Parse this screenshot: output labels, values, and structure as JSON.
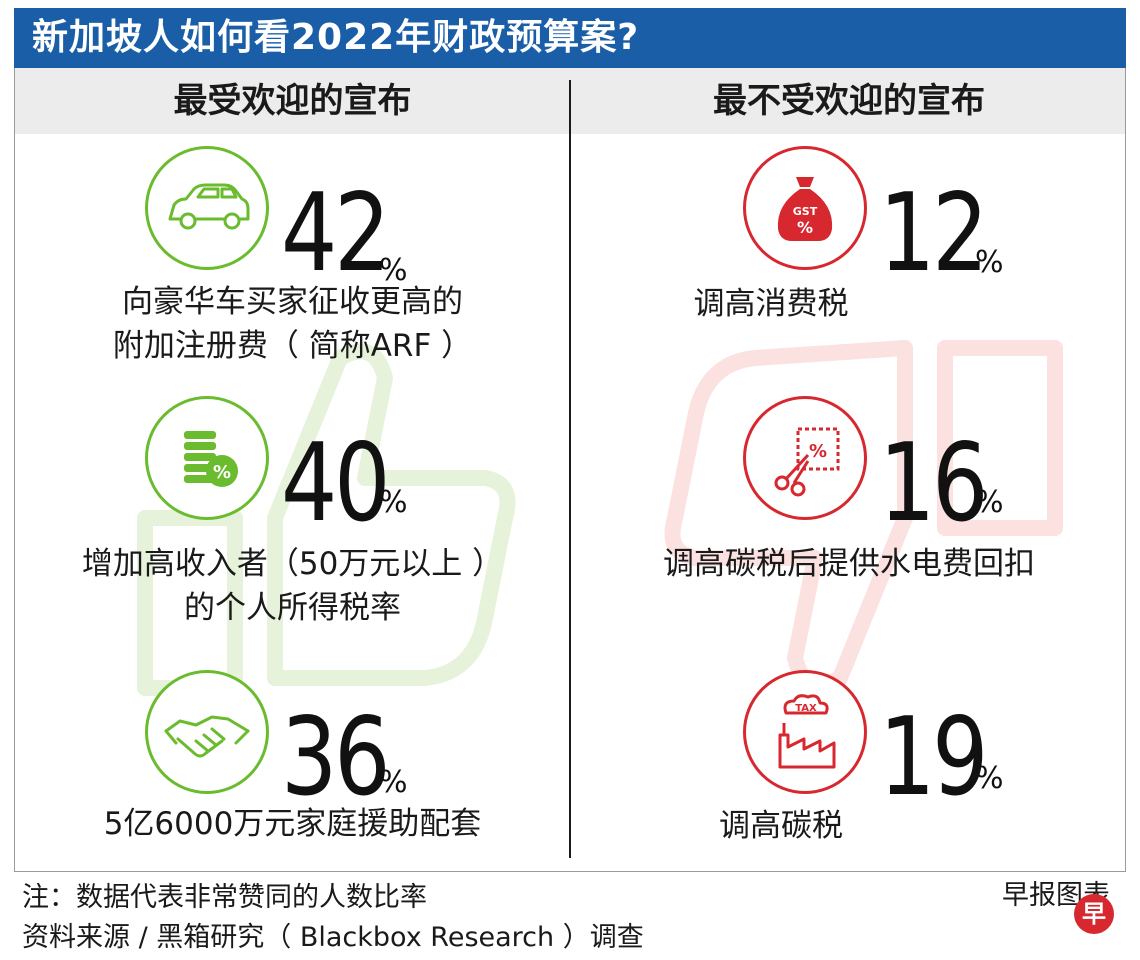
{
  "title": "新加坡人如何看2022年财政预算案?",
  "left_header": "最受欢迎的宣布",
  "right_header": "最不受欢迎的宣布",
  "colors": {
    "title_bg": "#1a5ea8",
    "popular": "#6abb2e",
    "unpopular": "#d7282f"
  },
  "chart_data": [
    {
      "type": "table",
      "title": "最受欢迎的宣布",
      "unit": "%",
      "rows": [
        {
          "icon": "car-icon",
          "value": 42,
          "label_lines": [
            "向豪华车买家征收更高的",
            "附加注册费（ 简称ARF ）"
          ]
        },
        {
          "icon": "coins-percent-icon",
          "value": 40,
          "label_lines": [
            "增加高收入者（50万元以上 ）",
            "的个人所得税率"
          ]
        },
        {
          "icon": "handshake-icon",
          "value": 36,
          "label_lines": [
            "5亿6000万元家庭援助配套"
          ]
        }
      ]
    },
    {
      "type": "table",
      "title": "最不受欢迎的宣布",
      "unit": "%",
      "rows": [
        {
          "icon": "gst-money-bag-icon",
          "value": 12,
          "label_lines": [
            "调高消费税"
          ]
        },
        {
          "icon": "scissors-coupon-icon",
          "value": 16,
          "label_lines": [
            "调高碳税后提供水电费回扣"
          ]
        },
        {
          "icon": "factory-tax-icon",
          "value": 19,
          "label_lines": [
            "调高碳税"
          ]
        }
      ]
    }
  ],
  "icon_text": {
    "gst": "GST",
    "gst_pct": "%",
    "tax": "TAX",
    "coupon_pct": "%",
    "coin_pct": "%"
  },
  "note": "注：数据代表非常赞同的人数比率",
  "source": "资料来源 / 黑箱研究（ Blackbox Research ）调查",
  "credit": "早报图表",
  "logo_text": "早"
}
